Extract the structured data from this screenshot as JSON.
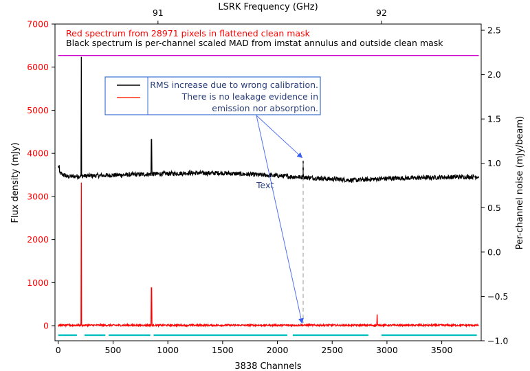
{
  "chart_data": {
    "type": "line",
    "x_axis": {
      "label": "3838 Channels",
      "ticks": [
        0,
        500,
        1000,
        1500,
        2000,
        2500,
        3000,
        3500
      ],
      "lim": [
        -30,
        3860
      ]
    },
    "top_axis": {
      "label": "LSRK Frequency (GHz)",
      "ticks": [
        {
          "label": "91",
          "channel": 910
        },
        {
          "label": "92",
          "channel": 2950
        }
      ]
    },
    "left_axis": {
      "label": "Flux density (mJy)",
      "color": "#ff0000",
      "ticks": [
        0,
        1000,
        2000,
        3000,
        4000,
        5000,
        6000,
        7000
      ],
      "lim": [
        -350,
        7000
      ]
    },
    "right_axis": {
      "label": "Per-channel noise (mJy/beam)",
      "ticks": [
        -1.0,
        -0.5,
        0.0,
        0.5,
        1.0,
        1.5,
        2.0,
        2.5
      ],
      "lim": [
        -1.0,
        2.57
      ]
    },
    "annotations": {
      "title_red": "Red spectrum from 28971 pixels in flattened clean mask",
      "title_black": "Black spectrum is per-channel scaled MAD from imstat annulus and outside clean mask",
      "box_lines": [
        "RMS increase due to wrong calibration.",
        "There is no leakage evidence in",
        "emission nor absorption."
      ],
      "text_label": "Text",
      "arrow_targets": [
        {
          "channel": 2225,
          "flux": 3900
        },
        {
          "channel": 2225,
          "flux": 60
        }
      ],
      "vline_channel": 2235
    },
    "series": [
      {
        "color": "#ff0000",
        "axis": "left",
        "baseline": 10,
        "noise": 20,
        "peaks": [
          {
            "channel": 210,
            "value": 3320
          },
          {
            "channel": 850,
            "value": 880
          },
          {
            "channel": 2910,
            "value": 260
          }
        ]
      },
      {
        "color": "#000000",
        "axis": "right",
        "profile": [
          {
            "channel": 0,
            "value": 0.9
          },
          {
            "channel": 80,
            "value": 0.85
          },
          {
            "channel": 300,
            "value": 0.86
          },
          {
            "channel": 1200,
            "value": 0.89
          },
          {
            "channel": 1500,
            "value": 0.89
          },
          {
            "channel": 2000,
            "value": 0.86
          },
          {
            "channel": 2400,
            "value": 0.83
          },
          {
            "channel": 2700,
            "value": 0.81
          },
          {
            "channel": 3000,
            "value": 0.83
          },
          {
            "channel": 3820,
            "value": 0.85
          }
        ],
        "noise": 0.025,
        "peaks": [
          {
            "channel": 210,
            "value": 2.2
          },
          {
            "channel": 850,
            "value": 1.27
          },
          {
            "channel": 2235,
            "value": 1.03
          }
        ]
      },
      {
        "color": "#cc00cc",
        "axis": "left",
        "constant": 6270,
        "range": [
          0,
          3838
        ]
      },
      {
        "color": "#00c0c0",
        "axis": "left",
        "constant": -220,
        "segments": [
          [
            0,
            170
          ],
          [
            240,
            430
          ],
          [
            460,
            840
          ],
          [
            870,
            2090
          ],
          [
            2140,
            2830
          ],
          [
            2950,
            3820
          ]
        ]
      }
    ]
  }
}
